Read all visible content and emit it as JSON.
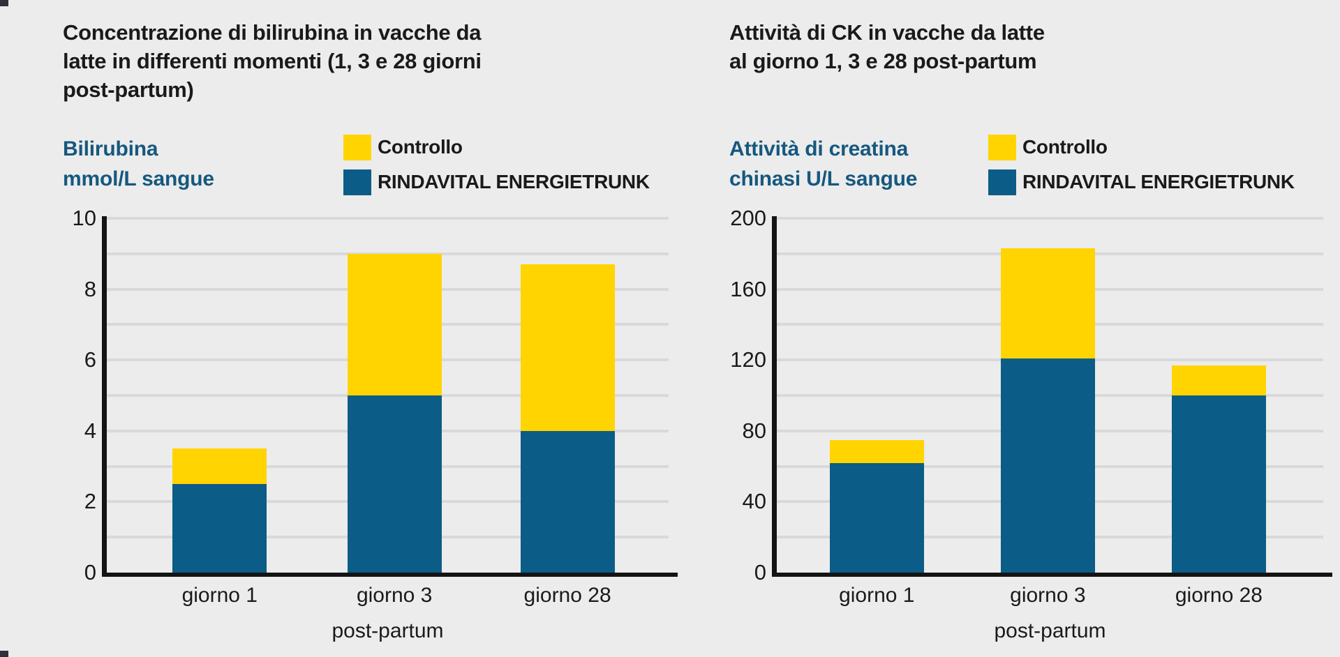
{
  "colors": {
    "background": "#ececec",
    "controllo_yellow": "#ffd400",
    "rindavital_blue": "#0b5c86",
    "axis_label_blue": "#16587f",
    "grid": "#d9d9d9",
    "axis": "#141414",
    "text": "#1a1a1a"
  },
  "charts": [
    {
      "title_lines": [
        "Concentrazione di bilirubina in vacche da",
        "latte in differenti momenti (1, 3 e 28 giorni",
        "post-partum)"
      ],
      "y_axis_label_lines": [
        "Bilirubina",
        "mmol/L sangue"
      ],
      "legend": {
        "items": [
          {
            "label": "Controllo",
            "color": "#ffd400"
          },
          {
            "label": "RINDAVITAL ENERGIETRUNK",
            "color": "#0b5c86"
          }
        ]
      },
      "x_axis_title": "post-partum",
      "chart_data": {
        "type": "bar",
        "subtype": "overlay",
        "title": "Concentrazione di bilirubina in vacche da latte in differenti momenti (1, 3 e 28 giorni post-partum)",
        "categories": [
          "giorno 1",
          "giorno 3",
          "giorno 28"
        ],
        "series": [
          {
            "name": "Controllo",
            "color": "#ffd400",
            "values": [
              3.5,
              9,
              8.7
            ]
          },
          {
            "name": "RINDAVITAL ENERGIETRUNK",
            "color": "#0b5c86",
            "values": [
              2.5,
              5,
              4
            ]
          }
        ],
        "xlabel": "post-partum",
        "ylabel": "Bilirubina mmol/L sangue",
        "ylim": [
          0,
          10
        ],
        "ytick_step": 2,
        "grid_step": 1,
        "grid": true,
        "legend_position": "top"
      }
    },
    {
      "title_lines": [
        "Attività di CK in vacche da latte",
        "al giorno 1, 3 e 28 post-partum"
      ],
      "y_axis_label_lines": [
        "Attività di creatina",
        "chinasi U/L sangue"
      ],
      "legend": {
        "items": [
          {
            "label": "Controllo",
            "color": "#ffd400"
          },
          {
            "label": "RINDAVITAL ENERGIETRUNK",
            "color": "#0b5c86"
          }
        ]
      },
      "x_axis_title": "post-partum",
      "chart_data": {
        "type": "bar",
        "subtype": "overlay",
        "title": "Attività di CK in vacche da latte al giorno 1, 3 e 28 post-partum",
        "categories": [
          "giorno 1",
          "giorno 3",
          "giorno 28"
        ],
        "series": [
          {
            "name": "Controllo",
            "color": "#ffd400",
            "values": [
              75,
              183,
              117
            ]
          },
          {
            "name": "RINDAVITAL ENERGIETRUNK",
            "color": "#0b5c86",
            "values": [
              62,
              121,
              100
            ]
          }
        ],
        "xlabel": "post-partum",
        "ylabel": "Attività di creatina chinasi U/L sangue",
        "ylim": [
          0,
          200
        ],
        "ytick_step": 40,
        "grid_step": 20,
        "grid": true,
        "legend_position": "top"
      }
    }
  ]
}
